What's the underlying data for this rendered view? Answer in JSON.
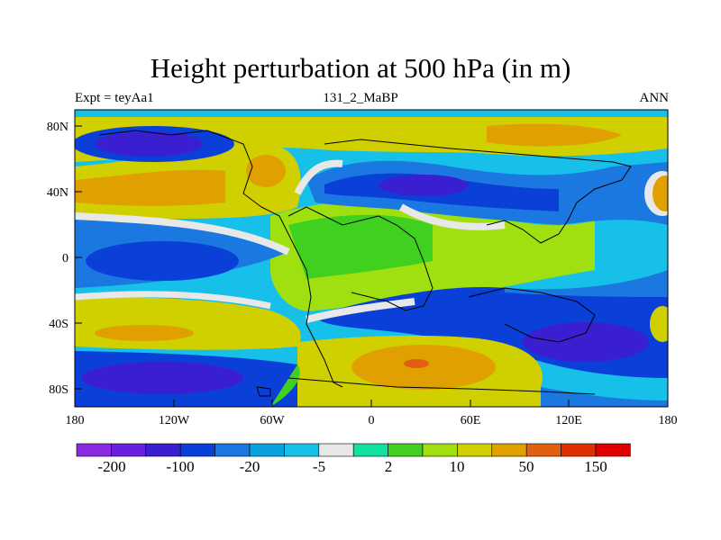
{
  "title": "Height perturbation at 500 hPa (in m)",
  "left_label": "Expt = teyAa1",
  "center_label": "131_2_MaBP",
  "right_label": "ANN",
  "x_ticks": [
    "180",
    "120W",
    "60W",
    "0",
    "60E",
    "120E",
    "180"
  ],
  "y_ticks": [
    "80N",
    "40N",
    "0",
    "40S",
    "80S"
  ],
  "colorbar": {
    "colors": [
      "#8a2be2",
      "#6a1ee0",
      "#3a1fd0",
      "#0a40d8",
      "#1a78e0",
      "#0aa0e0",
      "#16c0e8",
      "#e8e8e8",
      "#10e0a0",
      "#40d020",
      "#a0e010",
      "#d0d000",
      "#e0a000",
      "#e06010",
      "#e03000",
      "#e00000"
    ],
    "labels": [
      "-200",
      "-100",
      "-20",
      "-5",
      "2",
      "10",
      "50",
      "150"
    ]
  }
}
